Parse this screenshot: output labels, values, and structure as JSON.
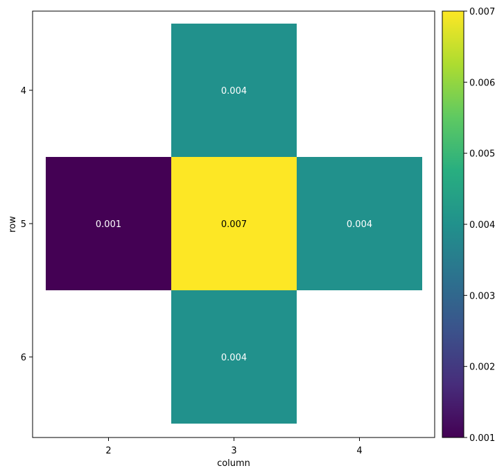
{
  "chart_data": {
    "type": "heatmap",
    "xlabel": "column",
    "ylabel": "row",
    "x_categories": [
      2,
      3,
      4
    ],
    "y_categories": [
      4,
      5,
      6
    ],
    "cells": [
      {
        "column": 3,
        "row": 4,
        "value": 0.004,
        "label": "0.004"
      },
      {
        "column": 2,
        "row": 5,
        "value": 0.001,
        "label": "0.001"
      },
      {
        "column": 3,
        "row": 5,
        "value": 0.007,
        "label": "0.007"
      },
      {
        "column": 4,
        "row": 5,
        "value": 0.004,
        "label": "0.004"
      },
      {
        "column": 3,
        "row": 6,
        "value": 0.004,
        "label": "0.004"
      }
    ],
    "colorbar": {
      "colormap": "viridis",
      "range": [
        0.001,
        0.007
      ],
      "ticks": [
        {
          "value": 0.001,
          "label": "0.001"
        },
        {
          "value": 0.002,
          "label": "0.002"
        },
        {
          "value": 0.003,
          "label": "0.003"
        },
        {
          "value": 0.004,
          "label": "0.004"
        },
        {
          "value": 0.005,
          "label": "0.005"
        },
        {
          "value": 0.006,
          "label": "0.006"
        },
        {
          "value": 0.007,
          "label": "0.007"
        }
      ]
    },
    "grid": false
  }
}
